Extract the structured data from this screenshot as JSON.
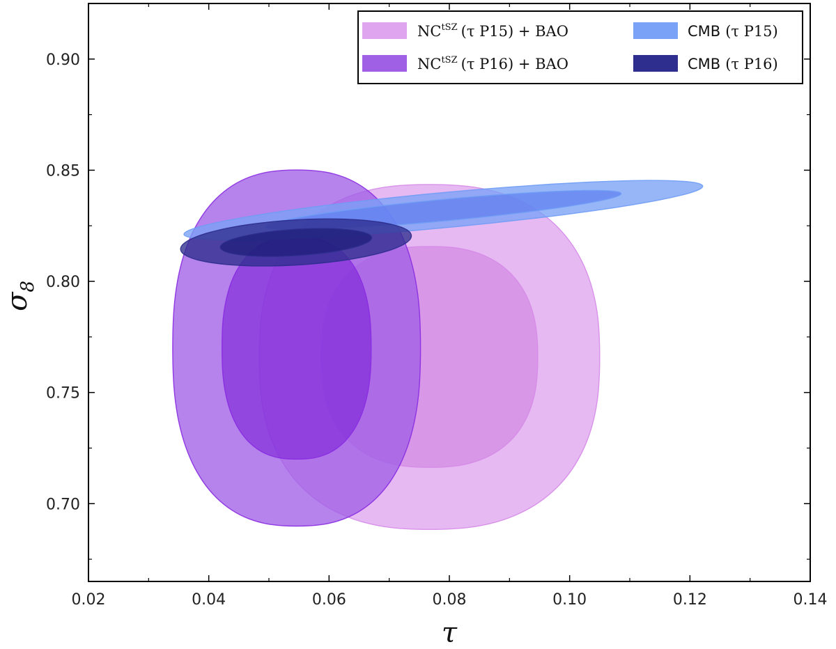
{
  "chart_data": {
    "type": "contour",
    "xlabel": "τ",
    "ylabel_main": "σ",
    "ylabel_sub": "8",
    "xlim": [
      0.02,
      0.14
    ],
    "ylim": [
      0.665,
      0.925
    ],
    "x_ticks": [
      "0.02",
      "0.04",
      "0.06",
      "0.08",
      "0.10",
      "0.12",
      "0.14"
    ],
    "x_tick_values": [
      0.02,
      0.04,
      0.06,
      0.08,
      0.1,
      0.12,
      0.14
    ],
    "y_ticks": [
      "0.70",
      "0.75",
      "0.80",
      "0.85",
      "0.90"
    ],
    "y_tick_values": [
      0.7,
      0.75,
      0.8,
      0.85,
      0.9
    ],
    "legend_position": "top-right",
    "series": [
      {
        "key": "nc_p15",
        "legend_base": "NC",
        "legend_sup": "tSZ",
        "legend_rest": "(τ P15) + BAO",
        "legend_font": "serif",
        "color": "#d68be8",
        "outer_color": "#dfa5ee",
        "inner_color": "#cf82e0",
        "center": [
          0.0767,
          0.766
        ],
        "contours": [
          {
            "level": "95%",
            "sx": 0.0283,
            "sy": 0.0776
          },
          {
            "level": "68%",
            "sx": 0.018,
            "sy": 0.0497
          }
        ]
      },
      {
        "key": "nc_p16",
        "legend_base": "NC",
        "legend_sup": "tSZ",
        "legend_rest": "(τ P16) + BAO",
        "legend_font": "serif",
        "color": "#8a2be2",
        "outer_color": "#a060e6",
        "inner_color": "#7c22d8",
        "center": [
          0.0546,
          0.77
        ],
        "contours": [
          {
            "level": "95%",
            "sx": 0.0206,
            "sy": 0.0801
          },
          {
            "level": "68%",
            "sx": 0.0124,
            "sy": 0.05
          }
        ]
      },
      {
        "key": "cmb_p15",
        "legend_base": "CMB",
        "legend_sup": "",
        "legend_rest": "(τ P15)",
        "legend_font": "sans",
        "color": "#6f9cf5",
        "outer_color": "#7aa2f6",
        "inner_color": "#5f7ff0",
        "center": [
          0.079,
          0.832
        ],
        "angle_deg": -14.5,
        "contours": [
          {
            "level": "95%",
            "a": 0.0445,
            "b": 0.0077
          },
          {
            "level": "68%",
            "a": 0.0305,
            "b": 0.0047
          }
        ]
      },
      {
        "key": "cmb_p16",
        "legend_base": "CMB",
        "legend_sup": "",
        "legend_rest": "(τ P16)",
        "legend_font": "sans",
        "color": "#2c2c8c",
        "outer_color": "#2e2e8e",
        "inner_color": "#1c1c78",
        "center": [
          0.0545,
          0.8175
        ],
        "angle_deg": -12,
        "contours": [
          {
            "level": "95%",
            "a": 0.0195,
            "b": 0.01
          },
          {
            "level": "68%",
            "a": 0.0128,
            "b": 0.0058
          }
        ]
      }
    ]
  }
}
